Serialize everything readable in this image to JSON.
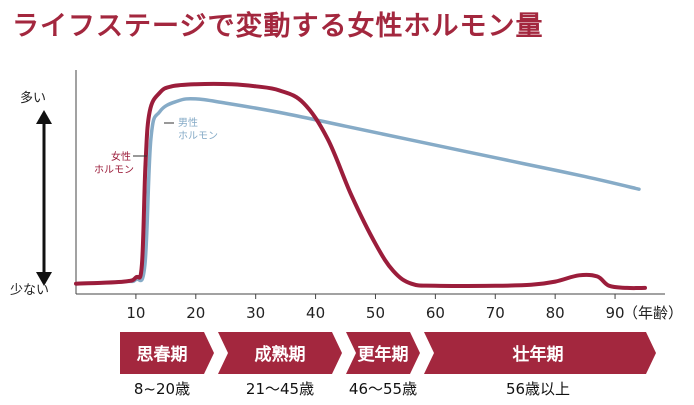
{
  "title": "ライフステージで変動する女性ホルモン量",
  "colors": {
    "female": "#9b1d3b",
    "male": "#86abc7",
    "title": "#a3273e",
    "stage_fill": "#a3273e",
    "axis": "#111111"
  },
  "chart_data": {
    "type": "line",
    "title": "ライフステージで変動する女性ホルモン量",
    "y_top_label": "多い",
    "y_bottom_label": "少ない",
    "x_unit_label": "（年齢）",
    "xlim": [
      0,
      95
    ],
    "ylim": [
      0,
      100
    ],
    "x_ticks": [
      10,
      20,
      30,
      40,
      50,
      60,
      70,
      80,
      90
    ],
    "series": [
      {
        "name": "女性ホルモン",
        "color": "#9b1d3b",
        "points": [
          [
            0,
            3
          ],
          [
            8,
            4
          ],
          [
            10,
            6
          ],
          [
            11,
            12
          ],
          [
            11.6,
            60
          ],
          [
            12.3,
            85
          ],
          [
            14,
            94
          ],
          [
            16,
            97
          ],
          [
            20,
            98
          ],
          [
            26,
            98
          ],
          [
            30,
            97
          ],
          [
            34,
            95
          ],
          [
            38,
            89
          ],
          [
            42,
            72
          ],
          [
            46,
            45
          ],
          [
            50,
            22
          ],
          [
            53,
            9
          ],
          [
            56,
            3
          ],
          [
            60,
            2
          ],
          [
            70,
            2
          ],
          [
            76,
            2.5
          ],
          [
            80,
            4
          ],
          [
            84,
            7
          ],
          [
            87,
            6.5
          ],
          [
            89,
            2
          ],
          [
            92,
            1
          ],
          [
            95,
            1
          ]
        ]
      },
      {
        "name": "男性ホルモン",
        "color": "#86abc7",
        "points": [
          [
            0,
            3
          ],
          [
            8,
            4
          ],
          [
            10,
            5
          ],
          [
            11.5,
            12
          ],
          [
            12.5,
            72
          ],
          [
            14,
            85
          ],
          [
            17,
            90
          ],
          [
            20,
            91
          ],
          [
            25,
            89
          ],
          [
            35,
            84
          ],
          [
            45,
            78
          ],
          [
            55,
            72
          ],
          [
            65,
            66
          ],
          [
            75,
            60
          ],
          [
            85,
            54
          ],
          [
            94,
            48
          ]
        ]
      }
    ],
    "annotations": [
      {
        "series": "女性ホルモン",
        "lines": [
          "女性",
          "ホルモン"
        ]
      },
      {
        "series": "男性ホルモン",
        "lines": [
          "男性",
          "ホルモン"
        ]
      }
    ]
  },
  "stages": [
    {
      "name": "思春期",
      "range": "8~20歳"
    },
    {
      "name": "成熟期",
      "range": "21～45歳"
    },
    {
      "name": "更年期",
      "range": "46～55歳"
    },
    {
      "name": "壮年期",
      "range": "56歳以上"
    }
  ]
}
